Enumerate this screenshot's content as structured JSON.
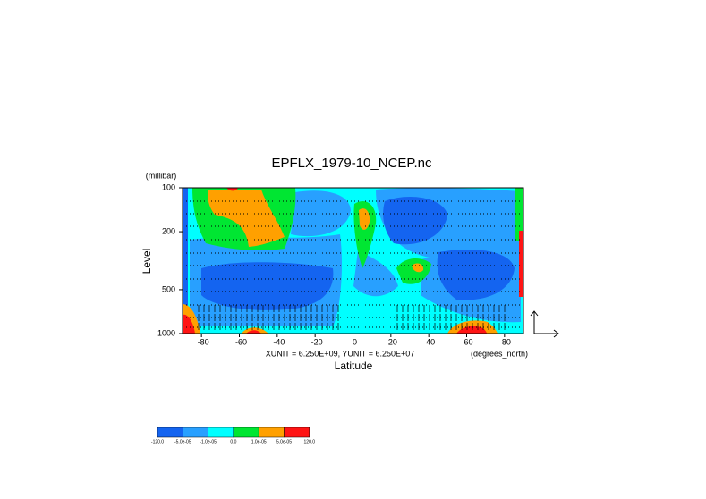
{
  "chart_data": {
    "type": "contour",
    "title": "EPFLX_1979-10_NCEP.nc",
    "y_unit": "(millibar)",
    "y_label": "Level",
    "x_label": "Latitude",
    "x_unit": "(degrees_north)",
    "vector_scale": "XUNIT = 6.250E+09, YUNIT = 6.250E+07",
    "xlim": [
      -90,
      90
    ],
    "xticks": [
      -80,
      -60,
      -40,
      -20,
      0,
      20,
      40,
      60,
      80
    ],
    "ylim": [
      1000,
      100
    ],
    "yticks": [
      100,
      200,
      500,
      1000
    ],
    "log_y": true,
    "levels": [
      {
        "value": -120,
        "label": "-120.0"
      },
      {
        "value": -5e-05,
        "label": "-5.0e-05"
      },
      {
        "value": -1e-05,
        "label": "-1.0e-05"
      },
      {
        "value": 0,
        "label": "0.0"
      },
      {
        "value": 1e-05,
        "label": "1.0e-05"
      },
      {
        "value": 5e-05,
        "label": "5.0e-05"
      },
      {
        "value": 120,
        "label": "120.0"
      }
    ],
    "colors": [
      "#1464f0",
      "#28a0ff",
      "#00ffff",
      "#00e632",
      "#ffa000",
      "#ff1414"
    ]
  }
}
